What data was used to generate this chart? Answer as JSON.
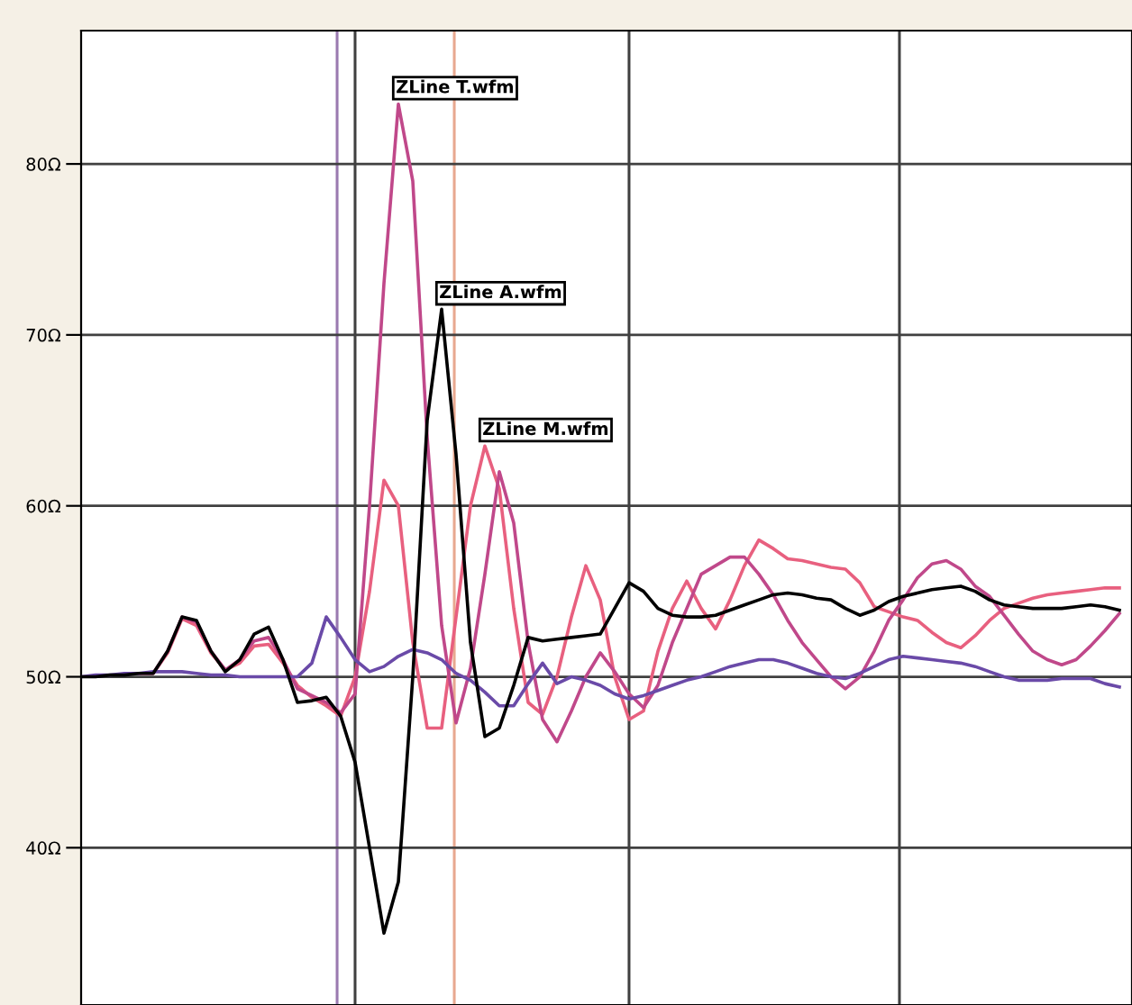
{
  "chart_data": {
    "type": "line",
    "categories": [
      null,
      null,
      null,
      null,
      null,
      null,
      null,
      null,
      null,
      null,
      null,
      null,
      null,
      null,
      null,
      null,
      null,
      null,
      null,
      null,
      null,
      null,
      null,
      null,
      null,
      null,
      null,
      null,
      null,
      null,
      null,
      null,
      null,
      null,
      null,
      null,
      null,
      null,
      null,
      null,
      null,
      null,
      null,
      null,
      null,
      null,
      null,
      null,
      null,
      null,
      null,
      null,
      null,
      null,
      null,
      null,
      null,
      null,
      null,
      null,
      null,
      null,
      null,
      null,
      null,
      null,
      null,
      null,
      null,
      null,
      null,
      null,
      null
    ],
    "ylim": [
      30.8,
      87.8
    ],
    "yticks": [
      {
        "value": 40,
        "label": "40Ω"
      },
      {
        "value": 50,
        "label": "50Ω"
      },
      {
        "value": 60,
        "label": "60Ω"
      },
      {
        "value": 70,
        "label": "70Ω"
      },
      {
        "value": 80,
        "label": "80Ω"
      }
    ],
    "tick_labels": "y",
    "grid": "y",
    "marker": "none",
    "line_style": "solid",
    "series": [
      {
        "name": "ZLine M.wfm",
        "color": "#e8607f",
        "values": [
          null,
          null,
          null,
          null,
          50.2,
          50.2,
          51.4,
          53.4,
          53,
          51.4,
          50.4,
          50.8,
          51.8,
          51.9,
          50.8,
          49.5,
          48.8,
          48.3,
          47.7,
          50,
          55,
          61.5,
          60,
          52,
          47,
          47,
          53.5,
          60,
          63.5,
          61,
          54,
          48.5,
          47.8,
          50,
          53.5,
          56.5,
          54.5,
          50,
          47.5,
          48,
          51.5,
          54,
          55.6,
          54,
          52.8,
          54.5,
          56.5,
          58,
          57.5,
          56.9,
          56.8,
          56.6,
          56.4,
          56.3,
          55.5,
          54.1,
          53.8,
          53.5,
          53.3,
          52.6,
          52,
          51.7,
          52.4,
          53.3,
          54,
          54.3,
          54.6,
          54.8,
          54.9,
          55,
          55.1,
          55.2,
          55.2
        ]
      },
      {
        "name": "ZLine T.wfm",
        "color": "#c0488a",
        "values": [
          null,
          null,
          null,
          null,
          50.2,
          50.2,
          51.5,
          53.5,
          53.2,
          51.5,
          50.4,
          51,
          52.1,
          52.3,
          51,
          49.3,
          48.9,
          48.5,
          47.9,
          49,
          60,
          73,
          83.5,
          79,
          64,
          53,
          47.3,
          50.5,
          56,
          62,
          59,
          52,
          47.5,
          46.2,
          48,
          50,
          51.4,
          50.3,
          49,
          48.2,
          49.5,
          52,
          54,
          56,
          56.5,
          57,
          57,
          56,
          54.8,
          53.3,
          52,
          51,
          50,
          49.3,
          50,
          51.5,
          53.3,
          54.5,
          55.8,
          56.6,
          56.8,
          56.3,
          55.3,
          54.7,
          53.6,
          52.5,
          51.5,
          51,
          50.7,
          51,
          51.8,
          52.7,
          53.7
        ]
      },
      {
        "color": "#6a4aa8",
        "values": [
          50,
          50.1,
          50.1,
          50.2,
          50.2,
          50.3,
          50.3,
          50.3,
          50.2,
          50.1,
          50.1,
          50,
          50,
          50,
          50,
          50,
          50.8,
          53.5,
          52.3,
          51,
          50.3,
          50.6,
          51.2,
          51.6,
          51.4,
          51,
          50.2,
          49.8,
          49.1,
          48.3,
          48.3,
          49.6,
          50.8,
          49.6,
          50,
          49.8,
          49.5,
          49,
          48.7,
          48.9,
          49.2,
          49.5,
          49.8,
          50,
          50.3,
          50.6,
          50.8,
          51,
          51,
          50.8,
          50.5,
          50.2,
          50,
          49.9,
          50.2,
          50.6,
          51,
          51.2,
          51.1,
          51,
          50.9,
          50.8,
          50.6,
          50.3,
          50,
          49.8,
          49.8,
          49.8,
          49.9,
          49.9,
          49.9,
          49.6,
          49.4
        ]
      },
      {
        "name": "ZLine A.wfm",
        "color": "#000000",
        "values": [
          50,
          50,
          50.1,
          50.1,
          50.2,
          50.2,
          51.5,
          53.5,
          53.3,
          51.5,
          50.3,
          51,
          52.5,
          52.9,
          51,
          48.5,
          48.6,
          48.8,
          47.7,
          45,
          40,
          35,
          38,
          50,
          65,
          71.5,
          63,
          52,
          46.5,
          47,
          49.5,
          52.3,
          52.1,
          52.2,
          52.3,
          52.4,
          52.5,
          54,
          55.5,
          55,
          54,
          53.6,
          53.5,
          53.5,
          53.6,
          53.9,
          54.2,
          54.5,
          54.8,
          54.9,
          54.8,
          54.6,
          54.5,
          54,
          53.6,
          53.9,
          54.4,
          54.7,
          54.9,
          55.1,
          55.2,
          55.3,
          55,
          54.5,
          54.2,
          54.1,
          54,
          54,
          54,
          54.1,
          54.2,
          54.1,
          53.9
        ]
      }
    ]
  }
}
